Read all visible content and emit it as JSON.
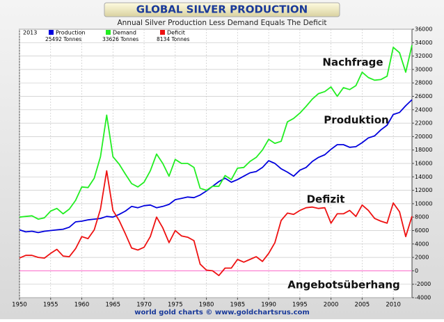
{
  "chart_data": {
    "type": "line",
    "title": "GLOBAL SILVER PRODUCTION",
    "subtitle": "Annual Silver Production Less Demand Equals The Deficit",
    "source": "world gold charts © www.goldchartsrus.com",
    "legend_year": "2013",
    "x": [
      1950,
      1951,
      1952,
      1953,
      1954,
      1955,
      1956,
      1957,
      1958,
      1959,
      1960,
      1961,
      1962,
      1963,
      1964,
      1965,
      1966,
      1967,
      1968,
      1969,
      1970,
      1971,
      1972,
      1973,
      1974,
      1975,
      1976,
      1977,
      1978,
      1979,
      1980,
      1981,
      1982,
      1983,
      1984,
      1985,
      1986,
      1987,
      1988,
      1989,
      1990,
      1991,
      1992,
      1993,
      1994,
      1995,
      1996,
      1997,
      1998,
      1999,
      2000,
      2001,
      2002,
      2003,
      2004,
      2005,
      2006,
      2007,
      2008,
      2009,
      2010,
      2011,
      2012,
      2013
    ],
    "series": [
      {
        "name": "Production",
        "color": "#0000dd",
        "legend_value": "25492 Tonnes",
        "values": [
          6100,
          5800,
          5900,
          5700,
          5900,
          6000,
          6100,
          6200,
          6500,
          7300,
          7400,
          7600,
          7700,
          7800,
          8100,
          8000,
          8400,
          8900,
          9600,
          9400,
          9700,
          9800,
          9400,
          9600,
          9900,
          10600,
          10800,
          11000,
          10900,
          11300,
          11900,
          12600,
          13300,
          13800,
          13200,
          13600,
          14100,
          14600,
          14800,
          15400,
          16400,
          16000,
          15200,
          14700,
          14100,
          15000,
          15400,
          16300,
          16900,
          17300,
          18100,
          18800,
          18800,
          18400,
          18500,
          19100,
          19800,
          20100,
          21000,
          21700,
          23300,
          23600,
          24600,
          25492
        ]
      },
      {
        "name": "Demand",
        "color": "#22ee22",
        "legend_value": "33626 Tonnes",
        "values": [
          8000,
          8100,
          8200,
          7700,
          7900,
          8900,
          9300,
          8500,
          9200,
          10500,
          12500,
          12400,
          13800,
          17000,
          23200,
          17000,
          15900,
          14400,
          13000,
          12500,
          13200,
          14900,
          17400,
          16000,
          14100,
          16600,
          16000,
          16000,
          15400,
          12300,
          12000,
          12600,
          12600,
          14200,
          13600,
          15300,
          15400,
          16300,
          16900,
          18000,
          19600,
          19000,
          19300,
          22200,
          22700,
          23500,
          24500,
          25600,
          26400,
          26700,
          27400,
          26000,
          27300,
          27000,
          27600,
          29600,
          28800,
          28400,
          28500,
          29000,
          33300,
          32500,
          29600,
          33626
        ]
      },
      {
        "name": "Deficit",
        "color": "#ee1111",
        "legend_value": "8134 Tonnes",
        "values": [
          1900,
          2300,
          2300,
          2000,
          1900,
          2600,
          3200,
          2200,
          2100,
          3300,
          5100,
          4800,
          6100,
          9200,
          14900,
          9000,
          7500,
          5500,
          3400,
          3100,
          3500,
          5100,
          8000,
          6400,
          4200,
          6000,
          5200,
          5000,
          4500,
          1000,
          100,
          0,
          -700,
          400,
          400,
          1700,
          1300,
          1700,
          2100,
          1400,
          2600,
          4200,
          7500,
          8600,
          8400,
          9000,
          9400,
          9500,
          9300,
          9400,
          7100,
          8500,
          8500,
          9000,
          8100,
          9800,
          9000,
          7800,
          7400,
          7100,
          10100,
          8800,
          5100,
          8134
        ]
      }
    ],
    "annotations": [
      "Nachfrage",
      "Produktion",
      "Defizit",
      "Angebotsüberhang"
    ],
    "xlim": [
      1950,
      2013
    ],
    "xticks": [
      1950,
      1955,
      1960,
      1965,
      1970,
      1975,
      1980,
      1985,
      1990,
      1995,
      2000,
      2005,
      2010
    ],
    "ylim": [
      -4000,
      36000
    ],
    "yticks": [
      -4000,
      -2000,
      0,
      2000,
      4000,
      6000,
      8000,
      10000,
      12000,
      14000,
      16000,
      18000,
      20000,
      22000,
      24000,
      26000,
      28000,
      30000,
      32000,
      34000,
      36000
    ],
    "grid": true
  }
}
